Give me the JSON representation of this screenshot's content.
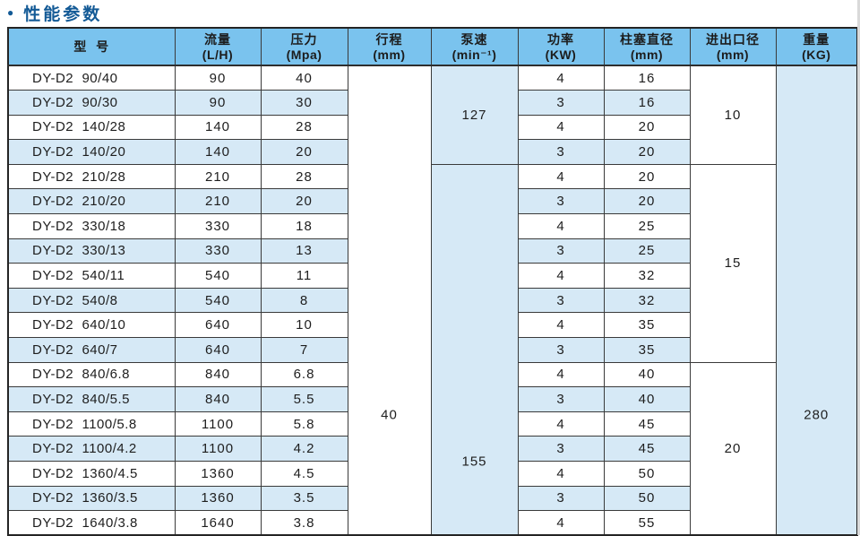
{
  "title": "性能参数",
  "colors": {
    "header_bg": "#7ac3ee",
    "stripe_bg": "#d6e9f6",
    "border": "#3a3a3a",
    "title_color": "#135a96"
  },
  "table": {
    "columns": [
      {
        "name": "型  号",
        "unit": ""
      },
      {
        "name": "流量",
        "unit": "(L/H)"
      },
      {
        "name": "压力",
        "unit": "(Mpa)"
      },
      {
        "name": "行程",
        "unit": "(mm)"
      },
      {
        "name": "泵速",
        "unit": "(min⁻¹)"
      },
      {
        "name": "功率",
        "unit": "(KW)"
      },
      {
        "name": "柱塞直径",
        "unit": "(mm)"
      },
      {
        "name": "进出口径",
        "unit": "(mm)"
      },
      {
        "name": "重量",
        "unit": "(KG)"
      }
    ],
    "rows": [
      {
        "model": "DY-D2  90/40",
        "flow": "90",
        "pressure": "40",
        "power": "4",
        "plunger": "16"
      },
      {
        "model": "DY-D2  90/30",
        "flow": "90",
        "pressure": "30",
        "power": "3",
        "plunger": "16"
      },
      {
        "model": "DY-D2  140/28",
        "flow": "140",
        "pressure": "28",
        "power": "4",
        "plunger": "20"
      },
      {
        "model": "DY-D2  140/20",
        "flow": "140",
        "pressure": "20",
        "power": "3",
        "plunger": "20"
      },
      {
        "model": "DY-D2  210/28",
        "flow": "210",
        "pressure": "28",
        "power": "4",
        "plunger": "20"
      },
      {
        "model": "DY-D2  210/20",
        "flow": "210",
        "pressure": "20",
        "power": "3",
        "plunger": "20"
      },
      {
        "model": "DY-D2  330/18",
        "flow": "330",
        "pressure": "18",
        "power": "4",
        "plunger": "25"
      },
      {
        "model": "DY-D2  330/13",
        "flow": "330",
        "pressure": "13",
        "power": "3",
        "plunger": "25"
      },
      {
        "model": "DY-D2  540/11",
        "flow": "540",
        "pressure": "11",
        "power": "4",
        "plunger": "32"
      },
      {
        "model": "DY-D2  540/8",
        "flow": "540",
        "pressure": "8",
        "power": "3",
        "plunger": "32"
      },
      {
        "model": "DY-D2  640/10",
        "flow": "640",
        "pressure": "10",
        "power": "4",
        "plunger": "35"
      },
      {
        "model": "DY-D2  640/7",
        "flow": "640",
        "pressure": "7",
        "power": "3",
        "plunger": "35"
      },
      {
        "model": "DY-D2  840/6.8",
        "flow": "840",
        "pressure": "6.8",
        "power": "4",
        "plunger": "40"
      },
      {
        "model": "DY-D2  840/5.5",
        "flow": "840",
        "pressure": "5.5",
        "power": "3",
        "plunger": "40"
      },
      {
        "model": "DY-D2  1100/5.8",
        "flow": "1100",
        "pressure": "5.8",
        "power": "4",
        "plunger": "45"
      },
      {
        "model": "DY-D2  1100/4.2",
        "flow": "1100",
        "pressure": "4.2",
        "power": "3",
        "plunger": "45"
      },
      {
        "model": "DY-D2  1360/4.5",
        "flow": "1360",
        "pressure": "4.5",
        "power": "4",
        "plunger": "50"
      },
      {
        "model": "DY-D2  1360/3.5",
        "flow": "1360",
        "pressure": "3.5",
        "power": "3",
        "plunger": "50"
      },
      {
        "model": "DY-D2  1640/3.8",
        "flow": "1640",
        "pressure": "3.8",
        "power": "4",
        "plunger": "55"
      }
    ],
    "merged": {
      "stroke": "40",
      "pump_speed": [
        {
          "value": "127",
          "rows": 4
        },
        {
          "value": "155",
          "rows": 15
        }
      ],
      "port_size": [
        {
          "value": "10",
          "rows": 4
        },
        {
          "value": "15",
          "rows": 8
        },
        {
          "value": "20",
          "rows": 7
        }
      ],
      "weight": "280"
    }
  }
}
